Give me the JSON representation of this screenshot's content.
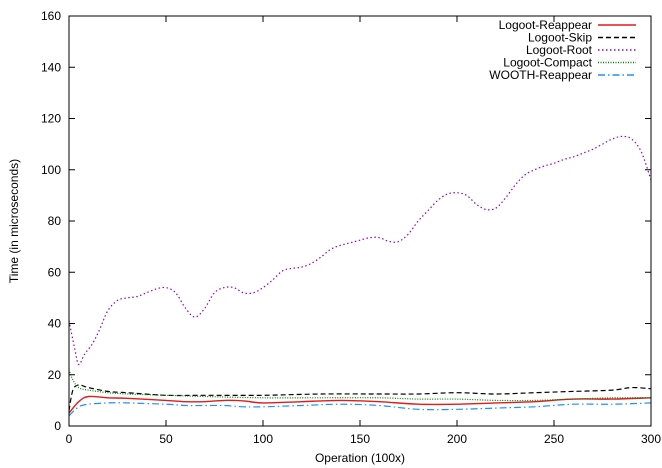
{
  "chart_data": {
    "type": "line",
    "title": "",
    "xlabel": "Operation (100x)",
    "ylabel": "Time (in microseconds)",
    "xlim": [
      0,
      300
    ],
    "ylim": [
      0,
      160
    ],
    "xticks": [
      0,
      50,
      100,
      150,
      200,
      250,
      300
    ],
    "yticks": [
      0,
      20,
      40,
      60,
      80,
      100,
      120,
      140,
      160
    ],
    "grid": false,
    "legend_position": "top-right",
    "series": [
      {
        "name": "Logoot-Reappear",
        "color": "#e41a1c",
        "dash": "solid",
        "x": [
          0,
          5,
          10,
          20,
          30,
          50,
          60,
          70,
          80,
          90,
          100,
          120,
          140,
          160,
          180,
          200,
          220,
          240,
          260,
          280,
          300
        ],
        "y": [
          5,
          9.5,
          11.5,
          11,
          10.8,
          10,
          9.5,
          9.5,
          10,
          9.8,
          9,
          9.5,
          10,
          9.5,
          8.5,
          8.5,
          9,
          9.5,
          10.5,
          10.5,
          11
        ]
      },
      {
        "name": "Logoot-Skip",
        "color": "#000000",
        "dash": "dashed",
        "x": [
          0,
          2,
          5,
          10,
          20,
          30,
          50,
          70,
          100,
          130,
          160,
          180,
          200,
          220,
          240,
          260,
          280,
          290,
          300
        ],
        "y": [
          6,
          14,
          16,
          15,
          13.5,
          13,
          12,
          12,
          12,
          12.5,
          12.5,
          12.5,
          13,
          12.5,
          13,
          13.5,
          14,
          15,
          14.5
        ]
      },
      {
        "name": "Logoot-Root",
        "color": "#9400d3",
        "dash": "dotted",
        "x": [
          0,
          3,
          5,
          8,
          12,
          16,
          20,
          25,
          30,
          35,
          40,
          45,
          50,
          55,
          60,
          65,
          70,
          75,
          80,
          85,
          90,
          95,
          100,
          105,
          110,
          115,
          120,
          125,
          130,
          135,
          140,
          145,
          150,
          155,
          160,
          165,
          170,
          175,
          180,
          185,
          190,
          195,
          200,
          205,
          210,
          215,
          220,
          225,
          230,
          235,
          240,
          245,
          250,
          255,
          260,
          265,
          270,
          275,
          280,
          285,
          290,
          295,
          300
        ],
        "y": [
          41,
          30,
          24,
          28,
          32,
          38,
          45,
          49,
          50,
          50.5,
          52,
          53.5,
          54,
          52,
          46,
          42.5,
          46,
          52,
          54,
          54,
          52,
          52,
          54,
          57,
          60.5,
          61.5,
          62,
          63.5,
          66,
          69,
          70.5,
          71.5,
          72.5,
          73.5,
          73.5,
          72,
          72,
          75,
          80,
          84,
          88,
          90.5,
          91,
          90,
          86.5,
          84.5,
          85,
          89,
          94,
          98,
          100,
          101.5,
          102.5,
          104,
          105,
          106.5,
          108,
          110,
          112,
          113,
          112,
          107,
          96
        ]
      },
      {
        "name": "Logoot-Compact",
        "color": "#007f00",
        "dash": "finedotted",
        "x": [
          0,
          2,
          5,
          10,
          20,
          30,
          50,
          70,
          100,
          130,
          160,
          180,
          200,
          220,
          240,
          260,
          280,
          300
        ],
        "y": [
          22,
          18,
          15,
          14,
          13,
          12.5,
          12,
          11.5,
          11,
          11,
          11,
          10.5,
          10.5,
          10,
          10,
          10.5,
          11,
          11
        ]
      },
      {
        "name": "WOOTH-Reappear",
        "color": "#1e90ff",
        "dash": "dashdot",
        "x": [
          0,
          5,
          10,
          20,
          30,
          50,
          60,
          70,
          80,
          90,
          100,
          120,
          140,
          160,
          180,
          200,
          220,
          240,
          260,
          280,
          300
        ],
        "y": [
          4,
          7.5,
          8.5,
          9,
          9,
          8.5,
          8,
          8,
          8,
          7.5,
          7.5,
          8,
          8.5,
          8,
          6.5,
          6.5,
          7,
          7.5,
          8.5,
          8.5,
          9
        ]
      }
    ]
  }
}
